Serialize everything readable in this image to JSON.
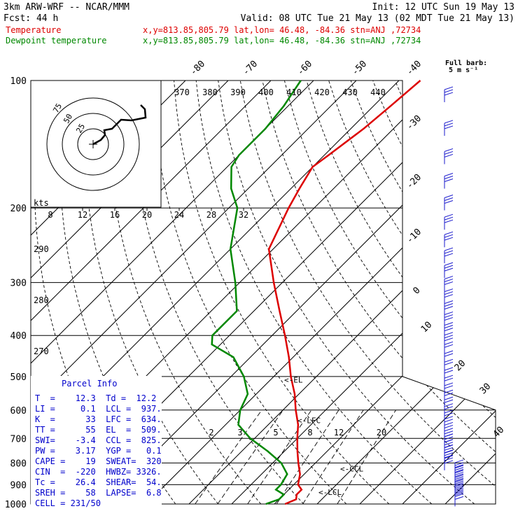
{
  "header": {
    "model": "3km ARW-WRF -- NCAR/MMM",
    "init": "Init: 12 UTC Sun 19 May 13",
    "fcst": "Fcst:   44 h",
    "valid": "Valid: 08 UTC Tue 21 May 13 (02 MDT Tue 21 May 13)",
    "lines": [
      {
        "name": "Temperature",
        "info": "x,y=813.85,805.79   lat,lon= 46.48, -84.36   stn=ANJ ,72734",
        "color": "#dd0000"
      },
      {
        "name": "Dewpoint temperature",
        "info": "x,y=813.85,805.79   lat,lon= 46.48, -84.36   stn=ANJ ,72734",
        "color": "#008800"
      }
    ]
  },
  "barb_legend": {
    "title": "Full barb:",
    "unit": "5 m s⁻¹"
  },
  "parcel_info": {
    "title": "Parcel Info",
    "rows": [
      "T  =    12.3  Td =  12.2",
      "LI =     0.1  LCL =  937.",
      "K  =      33  LFC =  634.",
      "TT =      55  EL  =  509.",
      "SWI=    -3.4  CCL =  825.",
      "PW =    3.17  YGP =   0.1",
      "CAPE =    19  SWEAT=  320",
      "CIN  =  -220  HWBZ= 3326.",
      "Tc =    26.4  SHEAR=  54.",
      "SREH =    58  LAPSE=  6.8",
      "CELL = 231/50"
    ]
  },
  "chart_data": {
    "type": "line",
    "kind": "skew-T log-P diagram",
    "y_axis": {
      "label": "pressure (hPa)",
      "ticks": [
        100,
        200,
        300,
        400,
        500,
        600,
        700,
        800,
        900,
        1000
      ],
      "scale": "log",
      "range": [
        100,
        1000
      ]
    },
    "isotherm_labels": [
      "-80",
      "-70",
      "-60",
      "-50",
      "-40",
      "-30",
      "-20",
      "-10",
      "0",
      "10",
      "20",
      "30",
      "40"
    ],
    "theta_labels": [
      "370",
      "380",
      "390",
      "400",
      "410",
      "420",
      "430",
      "440"
    ],
    "dryadiabat_labels": [
      "290",
      "280",
      "270"
    ],
    "mixing_ratio_labels": [
      "2",
      "3",
      "5",
      "8",
      "12",
      "20"
    ],
    "inset_speed_labels": [
      "8",
      "12",
      "16",
      "20",
      "24",
      "28",
      "32"
    ],
    "hodograph_labels": [
      "75",
      "50",
      "25"
    ],
    "kts_label": "kts",
    "parcel_levels": [
      {
        "label": "<-EL",
        "p": 509
      },
      {
        "label": "<-LFC",
        "p": 634
      },
      {
        "label": "<-CCL",
        "p": 825
      },
      {
        "label": "<-LCL",
        "p": 937
      }
    ],
    "series": [
      {
        "name": "Temperature",
        "color": "#dd0000",
        "points": [
          [
            1000,
            12.5
          ],
          [
            975,
            14
          ],
          [
            950,
            13
          ],
          [
            925,
            13
          ],
          [
            900,
            11
          ],
          [
            850,
            9
          ],
          [
            800,
            6
          ],
          [
            750,
            3
          ],
          [
            700,
            0
          ],
          [
            650,
            -3
          ],
          [
            600,
            -7
          ],
          [
            550,
            -11
          ],
          [
            500,
            -16
          ],
          [
            450,
            -21
          ],
          [
            400,
            -27
          ],
          [
            350,
            -34
          ],
          [
            300,
            -42
          ],
          [
            250,
            -51
          ],
          [
            200,
            -56
          ],
          [
            180,
            -58
          ],
          [
            160,
            -60
          ],
          [
            150,
            -59
          ],
          [
            130,
            -57
          ],
          [
            115,
            -56
          ],
          [
            100,
            -55
          ]
        ]
      },
      {
        "name": "Dewpoint temperature",
        "color": "#008800",
        "points": [
          [
            1000,
            8
          ],
          [
            975,
            10
          ],
          [
            950,
            10
          ],
          [
            925,
            7
          ],
          [
            900,
            7
          ],
          [
            850,
            6
          ],
          [
            800,
            2
          ],
          [
            750,
            -4
          ],
          [
            700,
            -11
          ],
          [
            650,
            -17
          ],
          [
            600,
            -20
          ],
          [
            550,
            -22
          ],
          [
            500,
            -27
          ],
          [
            450,
            -34
          ],
          [
            420,
            -42
          ],
          [
            400,
            -44
          ],
          [
            350,
            -44
          ],
          [
            300,
            -51
          ],
          [
            250,
            -60
          ],
          [
            200,
            -68
          ],
          [
            180,
            -74
          ],
          [
            160,
            -79
          ],
          [
            150,
            -80
          ],
          [
            130,
            -80
          ],
          [
            115,
            -81
          ],
          [
            100,
            -83
          ]
        ]
      }
    ],
    "grid": true,
    "legend_position": "top-left"
  }
}
